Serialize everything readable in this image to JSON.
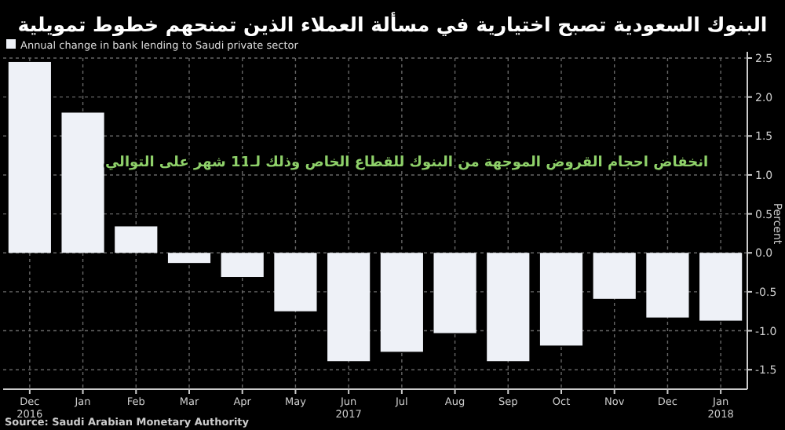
{
  "chart_data": {
    "type": "bar",
    "title": "البنوك السعودية تصبح اختيارية في مسألة العملاء الذين تمنحهم خطوط تمويلية",
    "ylabel": "Percent",
    "categories": [
      "Dec\n2016",
      "Jan",
      "Feb",
      "Mar",
      "Apr",
      "May",
      "Jun\n2017",
      "Jul",
      "Aug",
      "Sep",
      "Oct",
      "Nov",
      "Dec",
      "Jan\n2018"
    ],
    "series": [
      {
        "name": "Annual change in bank lending to Saudi private sector",
        "color": "#eef1f7",
        "values": [
          2.45,
          1.8,
          0.34,
          -0.13,
          -0.31,
          -0.75,
          -1.39,
          -1.27,
          -1.03,
          -1.39,
          -1.19,
          -0.59,
          -0.83,
          -0.87
        ]
      }
    ],
    "ylim": [
      -1.75,
      2.5
    ],
    "yticks": [
      {
        "value": 2.5,
        "label": "2.5"
      },
      {
        "value": 2,
        "label": "2.0"
      },
      {
        "value": 1.5,
        "label": "1.5"
      },
      {
        "value": 1,
        "label": "1.0"
      },
      {
        "value": 0.5,
        "label": "0.5"
      },
      {
        "value": 0,
        "label": "0.0"
      },
      {
        "value": -0.5,
        "label": "-0.5"
      },
      {
        "value": -1,
        "label": "-1.0"
      },
      {
        "value": -1.5,
        "label": "-1.5"
      }
    ],
    "grid": true,
    "legend": "top left",
    "annotations": [
      {
        "text": "انخفاض احجام القروض الموجهة من البنوك للقطاع الخاص وذلك لـ11 شهر على التوالي"
      },
      "Source: Saudi Arabian Monetary Authority"
    ]
  }
}
